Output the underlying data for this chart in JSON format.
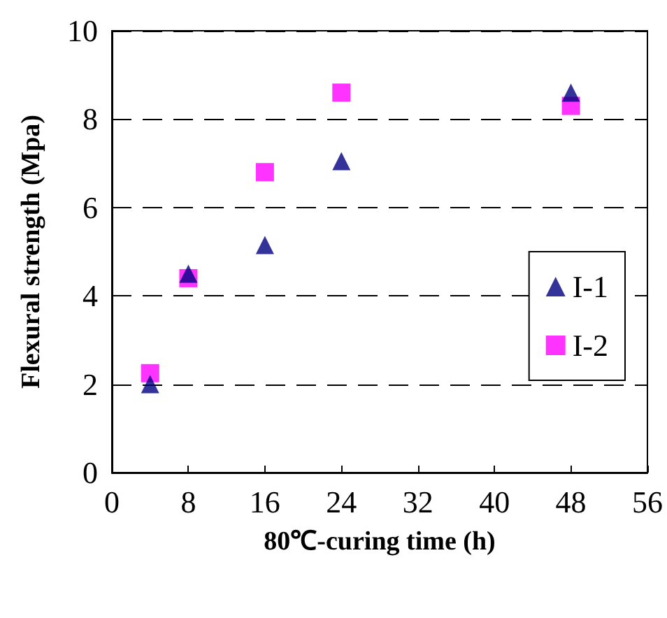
{
  "chart_data": {
    "type": "scatter",
    "xlabel": "80℃-curing time (h)",
    "ylabel": "Flexural strength (Mpa)",
    "xlim": [
      0,
      56
    ],
    "xticks": [
      0,
      8,
      16,
      24,
      32,
      40,
      48,
      56
    ],
    "ylim": [
      0,
      10
    ],
    "yticks": [
      0,
      2,
      4,
      6,
      8,
      10
    ],
    "grid": "y",
    "legend": "right",
    "series": [
      {
        "name": "I-1",
        "color": "#000080",
        "marker": "triangle",
        "x": [
          4,
          8,
          16,
          24,
          48
        ],
        "values": [
          2.0,
          4.5,
          5.15,
          7.05,
          8.6
        ]
      },
      {
        "name": "I-2",
        "color": "#ff00ff",
        "marker": "square",
        "x": [
          4,
          8,
          16,
          24,
          48
        ],
        "values": [
          2.25,
          4.4,
          6.8,
          8.6,
          8.3
        ]
      }
    ]
  }
}
